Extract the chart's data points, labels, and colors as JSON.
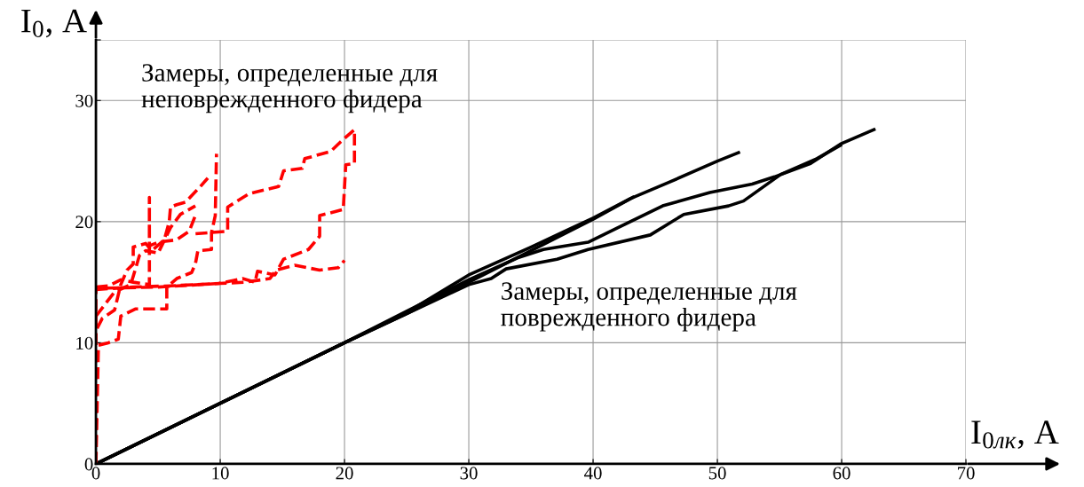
{
  "chart_data": {
    "type": "line",
    "xlabel": "I$_{0лк}$, A",
    "ylabel": "I$_{0}$, A",
    "annotations": [
      {
        "text": "Замеры, определенные для\nнеповрежденного фидера"
      },
      {
        "text": "Замеры, определенные для\nповрежденного фидера"
      }
    ],
    "xlim": [
      0,
      70
    ],
    "xticks": [
      0,
      10,
      20,
      30,
      40,
      50,
      60,
      70
    ],
    "ylim": [
      0,
      35
    ],
    "yticks": [
      0,
      10,
      20,
      30,
      {
        "value": 35,
        "label": null
      }
    ],
    "grid": true,
    "marker": "none",
    "series": [
      {
        "color": "#000000",
        "line_style": "solid",
        "x": [
          0,
          20,
          25,
          30,
          35,
          40,
          43,
          46,
          50,
          51.7
        ],
        "values": [
          0,
          10,
          12.5,
          15.6,
          17.9,
          20.3,
          21.9,
          23.2,
          25.0,
          25.7
        ]
      },
      {
        "color": "#000000",
        "line_style": "solid",
        "x": [
          0,
          20,
          25,
          30,
          33.9,
          36,
          39.6,
          42,
          45.6,
          49.4,
          52.8,
          54.6,
          57.5,
          59.9,
          62.6
        ],
        "values": [
          0,
          10,
          12.6,
          15.2,
          17.0,
          17.7,
          18.3,
          19.5,
          21.3,
          22.4,
          23.1,
          23.7,
          24.8,
          26.4,
          27.6
        ]
      },
      {
        "color": "#000000",
        "line_style": "solid",
        "x": [
          0,
          20,
          25,
          30,
          31.8,
          33,
          37.1,
          39.6,
          44.6,
          47.3,
          50.9,
          52.1,
          55.1,
          58,
          59.9
        ],
        "values": [
          0,
          10,
          12.4,
          14.8,
          15.3,
          16.1,
          16.9,
          17.7,
          18.9,
          20.6,
          21.3,
          21.7,
          23.9,
          25.2,
          26.3
        ]
      },
      {
        "color": "#000000",
        "line_style": "solid",
        "x": [
          0,
          20,
          25,
          30,
          35,
          40,
          43.2
        ],
        "values": [
          0,
          10,
          12.4,
          15.0,
          17.6,
          20.2,
          22.0
        ]
      },
      {
        "color": "#ff0000",
        "line_style": "dashed",
        "x": [
          0,
          0,
          5,
          9.9,
          11.8,
          12.8,
          13.0,
          14.4,
          15.1,
          17.1,
          18.0,
          18.0,
          19.9,
          20.1,
          20.8,
          20.8,
          19.7,
          18.9,
          16.8,
          16.6,
          15.1,
          14.7,
          12.3,
          10.6,
          10.6,
          8.0
        ],
        "values": [
          0,
          14.5,
          14.6,
          14.9,
          15.3,
          15.0,
          15.9,
          15.6,
          16.9,
          17.7,
          18.8,
          20.5,
          21.0,
          24.7,
          24.8,
          27.6,
          26.6,
          25.8,
          25.2,
          24.4,
          24.2,
          22.9,
          22.3,
          21.2,
          19.2,
          19.0
        ]
      },
      {
        "color": "#ff0000",
        "line_style": "dashed",
        "x": [
          0,
          0.2,
          1.0,
          1.8,
          2.0,
          3.2,
          5.7,
          5.7,
          6.5,
          7.7,
          8.0,
          8.2,
          9.3,
          9.3,
          9.6,
          9.7
        ],
        "values": [
          0,
          9.8,
          10.0,
          10.3,
          12.2,
          12.8,
          12.8,
          14.6,
          15.3,
          15.8,
          16.5,
          17.6,
          17.7,
          19.1,
          20.5,
          25.6
        ]
      },
      {
        "color": "#ff0000",
        "line_style": "dashed",
        "x": [
          0,
          0,
          0.5,
          1.5,
          2.0,
          2.5,
          3.0,
          3.0,
          4.0,
          4.5,
          5.5,
          5.9,
          6.0,
          6.5,
          7.2,
          8.4,
          9.0
        ],
        "values": [
          0,
          11.0,
          12.0,
          12.7,
          14.8,
          16.0,
          16.5,
          17.9,
          18.2,
          17.6,
          18.5,
          20.0,
          21.2,
          21.4,
          21.6,
          22.9,
          23.6
        ]
      },
      {
        "color": "#ff0000",
        "line_style": "dashed",
        "x": [
          0,
          1.0,
          2.0,
          3.0,
          4.3,
          4.3,
          4.3,
          5.0,
          6.5,
          7.5,
          8.0
        ],
        "values": [
          14.6,
          14.7,
          15.2,
          15.0,
          14.8,
          22.0,
          18.0,
          18.3,
          18.5,
          19.2,
          20.5
        ]
      },
      {
        "color": "#ff0000",
        "line_style": "dashed",
        "x": [
          0,
          1.5,
          2.8,
          3.5,
          4.0,
          5.0,
          6.0,
          6.8,
          7.5,
          8.0
        ],
        "values": [
          12.2,
          14.2,
          14.8,
          17.2,
          17.6,
          17.4,
          19.5,
          20.6,
          21.0,
          21.3
        ]
      },
      {
        "color": "#ff0000",
        "line_style": "dashed",
        "x": [
          0,
          3.0,
          6.0,
          8.0,
          10.0,
          12.0,
          14.0,
          14.5,
          16.0,
          18.0,
          19.5,
          20.0
        ],
        "values": [
          14.4,
          14.6,
          14.7,
          14.8,
          14.9,
          15.0,
          15.3,
          16.0,
          16.4,
          16.0,
          16.2,
          16.8
        ]
      }
    ]
  }
}
